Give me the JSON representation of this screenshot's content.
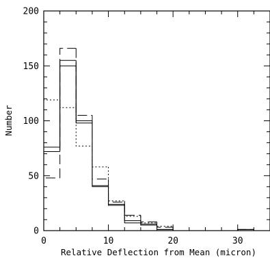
{
  "chart_data": {
    "type": "histogram",
    "xlabel": "Relative Deflection from Mean (micron)",
    "ylabel": "Number",
    "xlim": [
      0,
      35
    ],
    "ylim": [
      0,
      200
    ],
    "x_ticks": [
      0,
      10,
      20,
      30
    ],
    "y_ticks": [
      0,
      50,
      100,
      150,
      200
    ],
    "x_tick_labels": [
      "0",
      "10",
      "20",
      "30"
    ],
    "y_tick_labels": [
      "0",
      "50",
      "100",
      "150",
      "200"
    ],
    "bin_edges": [
      0,
      2.5,
      5,
      7.5,
      10,
      12.5,
      15,
      17.5,
      20,
      22.5,
      25,
      27.5,
      30,
      32.5,
      35
    ],
    "series": [
      {
        "style": "solid",
        "values": [
          76,
          155,
          100,
          41,
          23,
          9,
          6,
          1,
          0,
          0,
          0,
          0,
          1,
          0
        ]
      },
      {
        "style": "solid",
        "values": [
          72,
          150,
          98,
          40,
          24,
          7,
          5,
          1,
          0,
          0,
          0,
          0,
          1,
          0
        ]
      },
      {
        "style": "long-dash",
        "values": [
          48,
          166,
          105,
          47,
          26,
          14,
          8,
          3,
          0,
          0,
          0,
          0,
          1,
          0
        ]
      },
      {
        "style": "dotted",
        "values": [
          119,
          112,
          77,
          58,
          27,
          13,
          7,
          4,
          0,
          0,
          0,
          0,
          0,
          0
        ]
      }
    ],
    "grid": false
  }
}
